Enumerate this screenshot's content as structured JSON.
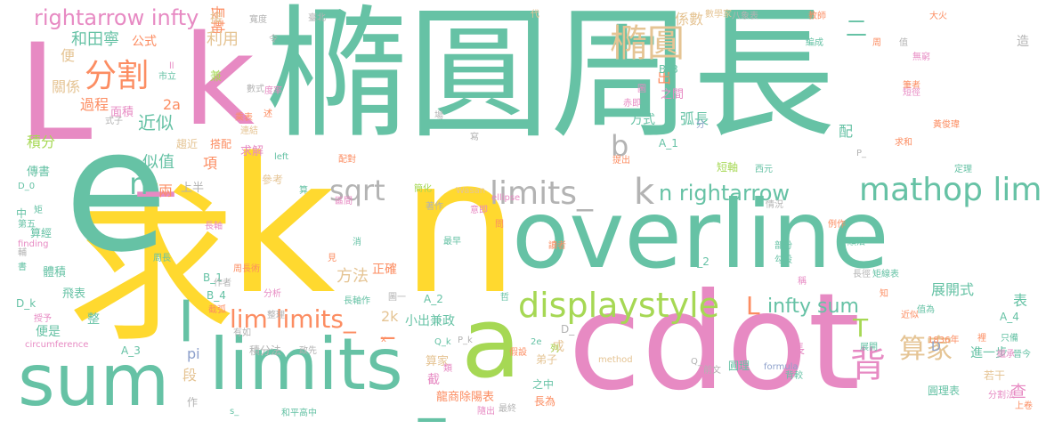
{
  "palette": {
    "green": "#66c2a5",
    "pink": "#e78ac3",
    "yellow": "#ffd92f",
    "orange": "#fc8d62",
    "lime": "#a6d854",
    "blue": "#8da0cb",
    "tan": "#e5c494",
    "gray": "#b3b3b3"
  },
  "words": [
    {
      "text": "橢圓周長",
      "color": "green"
    },
    {
      "text": "求",
      "color": "yellow"
    },
    {
      "text": "k",
      "color": "yellow"
    },
    {
      "text": "n",
      "color": "yellow"
    },
    {
      "text": "e",
      "color": "green"
    },
    {
      "text": "L",
      "color": "pink"
    },
    {
      "text": "k",
      "color": "pink"
    },
    {
      "text": "cdot",
      "color": "pink"
    },
    {
      "text": "overline",
      "color": "green"
    },
    {
      "text": "a",
      "color": "lime"
    },
    {
      "text": "sum",
      "color": "green"
    },
    {
      "text": "limits",
      "color": "green"
    },
    {
      "text": "_",
      "color": "green"
    },
    {
      "text": "_",
      "color": "pink"
    },
    {
      "text": "displaystyle",
      "color": "lime"
    },
    {
      "text": "mathop lim",
      "color": "green"
    },
    {
      "text": "limits_",
      "color": "gray"
    },
    {
      "text": "k",
      "color": "gray"
    },
    {
      "text": "n rightarrow",
      "color": "green"
    },
    {
      "text": "sqrt",
      "color": "gray"
    },
    {
      "text": "lim limits_",
      "color": "orange"
    },
    {
      "text": "infty sum",
      "color": "green"
    },
    {
      "text": "rightarrow infty",
      "color": "pink"
    },
    {
      "text": "分割",
      "color": "orange"
    },
    {
      "text": "橢圓",
      "color": "tan"
    },
    {
      "text": "算家",
      "color": "tan"
    },
    {
      "text": "背",
      "color": "pink"
    },
    {
      "text": "L",
      "color": "orange"
    },
    {
      "text": "T",
      "color": "lime"
    },
    {
      "text": "b",
      "color": "gray"
    },
    {
      "text": "n",
      "color": "green"
    },
    {
      "text": "_",
      "color": "orange"
    },
    {
      "text": "_",
      "color": "green"
    },
    {
      "text": "長軸",
      "color": "orange"
    },
    {
      "text": "利用",
      "color": "tan"
    },
    {
      "text": "和田寧",
      "color": "green"
    },
    {
      "text": "公式",
      "color": "orange"
    },
    {
      "text": "係數",
      "color": "tan"
    },
    {
      "text": "過程",
      "color": "orange"
    },
    {
      "text": "關係",
      "color": "tan"
    },
    {
      "text": "近似",
      "color": "green"
    },
    {
      "text": "面積",
      "color": "pink"
    },
    {
      "text": "積分",
      "color": "lime"
    },
    {
      "text": "似值",
      "color": "green"
    },
    {
      "text": "項",
      "color": "orange"
    },
    {
      "text": "2a",
      "color": "orange"
    },
    {
      "text": "方法",
      "color": "tan"
    },
    {
      "text": "正確",
      "color": "orange"
    },
    {
      "text": "小出兼政",
      "color": "green"
    },
    {
      "text": "展開式",
      "color": "green"
    },
    {
      "text": "表",
      "color": "green"
    },
    {
      "text": "進一步",
      "color": "green"
    },
    {
      "text": "查",
      "color": "pink"
    },
    {
      "text": "弧長",
      "color": "green"
    },
    {
      "text": "配",
      "color": "green"
    },
    {
      "text": "出",
      "color": "orange"
    },
    {
      "text": "二",
      "color": "green"
    },
    {
      "text": "方式",
      "color": "green"
    },
    {
      "text": "之間",
      "color": "pink"
    },
    {
      "text": "B_3",
      "color": "green"
    },
    {
      "text": "B_2",
      "color": "green"
    },
    {
      "text": "B_1",
      "color": "green"
    },
    {
      "text": "B_4",
      "color": "green"
    },
    {
      "text": "A_1",
      "color": "green"
    },
    {
      "text": "A_2",
      "color": "green"
    },
    {
      "text": "A_3",
      "color": "green"
    },
    {
      "text": "A_4",
      "color": "green"
    },
    {
      "text": "2k",
      "color": "tan"
    },
    {
      "text": "pi",
      "color": "blue"
    },
    {
      "text": "段",
      "color": "tan"
    },
    {
      "text": "作",
      "color": "gray"
    },
    {
      "text": "積分法",
      "color": "gray"
    },
    {
      "text": "兩",
      "color": "orange"
    },
    {
      "text": "上半",
      "color": "gray"
    },
    {
      "text": "中",
      "color": "green"
    },
    {
      "text": "算經",
      "color": "green"
    },
    {
      "text": "體積",
      "color": "green"
    },
    {
      "text": "飛表",
      "color": "green"
    },
    {
      "text": "便是",
      "color": "green"
    },
    {
      "text": "整",
      "color": "green"
    },
    {
      "text": "D_k",
      "color": "green"
    },
    {
      "text": "傳書",
      "color": "green"
    },
    {
      "text": "趨近",
      "color": "tan"
    },
    {
      "text": "搭配",
      "color": "orange"
    },
    {
      "text": "求解",
      "color": "pink"
    },
    {
      "text": "參考",
      "color": "tan"
    },
    {
      "text": "短軸",
      "color": "lime"
    },
    {
      "text": "成",
      "color": "tan"
    },
    {
      "text": "弟子",
      "color": "tan"
    },
    {
      "text": "長",
      "color": "pink"
    },
    {
      "text": "算家",
      "color": "tan"
    },
    {
      "text": "截",
      "color": "pink"
    },
    {
      "text": "龍商除陽表",
      "color": "orange"
    },
    {
      "text": "長為",
      "color": "orange"
    },
    {
      "text": "之中",
      "color": "green"
    },
    {
      "text": "圓理",
      "color": "green"
    },
    {
      "text": "圓理表",
      "color": "green"
    },
    {
      "text": "若干",
      "color": "tan"
    },
    {
      "text": "便",
      "color": "tan"
    },
    {
      "text": "兼",
      "color": "lime"
    },
    {
      "text": "造",
      "color": "gray"
    },
    {
      "text": "D",
      "color": "blue"
    },
    {
      "text": "D_",
      "color": "gray"
    },
    {
      "text": "D_0",
      "color": "green"
    },
    {
      "text": "數學家",
      "color": "tan"
    },
    {
      "text": "教師",
      "color": "orange"
    },
    {
      "text": "大火",
      "color": "orange"
    },
    {
      "text": "代",
      "color": "tan"
    },
    {
      "text": "寬度",
      "color": "gray"
    },
    {
      "text": "臺北",
      "color": "gray"
    },
    {
      "text": "數式",
      "color": "gray"
    },
    {
      "text": "令",
      "color": "gray"
    },
    {
      "text": "度率",
      "color": "pink"
    },
    {
      "text": "乘表",
      "color": "orange"
    },
    {
      "text": "連結",
      "color": "tan"
    },
    {
      "text": "式子",
      "color": "gray"
    },
    {
      "text": "left",
      "color": "green"
    },
    {
      "text": "配對",
      "color": "orange"
    },
    {
      "text": "簡化",
      "color": "lime"
    },
    {
      "text": "Wasan",
      "color": "tan"
    },
    {
      "text": "ellipse",
      "color": "pink"
    },
    {
      "text": "finding",
      "color": "pink"
    },
    {
      "text": "method",
      "color": "tan"
    },
    {
      "text": "formula",
      "color": "blue"
    },
    {
      "text": "circumference",
      "color": "pink"
    },
    {
      "text": "1836年",
      "color": "orange"
    },
    {
      "text": "求和",
      "color": "orange"
    },
    {
      "text": "黃俊瑋",
      "color": "orange"
    },
    {
      "text": "西元",
      "color": "green"
    },
    {
      "text": "定理",
      "color": "green"
    },
    {
      "text": "分析",
      "color": "pink"
    },
    {
      "text": "整理",
      "color": "gray"
    },
    {
      "text": "和平高中",
      "color": "green"
    },
    {
      "text": "最終",
      "color": "gray"
    },
    {
      "text": "作者",
      "color": "gray"
    },
    {
      "text": "周長術",
      "color": "orange"
    },
    {
      "text": "周長",
      "color": "green"
    },
    {
      "text": "截弧",
      "color": "orange"
    },
    {
      "text": "長軸作",
      "color": "green"
    },
    {
      "text": "假設",
      "color": "orange"
    },
    {
      "text": "讀者",
      "color": "orange"
    },
    {
      "text": "部份",
      "color": "green"
    },
    {
      "text": "勾股",
      "color": "green"
    },
    {
      "text": "順法",
      "color": "green"
    },
    {
      "text": "矩線表",
      "color": "green"
    },
    {
      "text": "值為",
      "color": "green"
    },
    {
      "text": "知",
      "color": "orange"
    },
    {
      "text": "近似",
      "color": "orange"
    },
    {
      "text": "展開",
      "color": "green"
    },
    {
      "text": "只備",
      "color": "green"
    },
    {
      "text": "繼承",
      "color": "pink"
    },
    {
      "text": "晉今",
      "color": "green"
    },
    {
      "text": "上卷",
      "color": "orange"
    },
    {
      "text": "背較",
      "color": "green"
    },
    {
      "text": "前文",
      "color": "gray"
    },
    {
      "text": "提出",
      "color": "orange"
    },
    {
      "text": "稱",
      "color": "pink"
    },
    {
      "text": "長徑",
      "color": "gray"
    },
    {
      "text": "情況",
      "color": "gray"
    },
    {
      "text": "編成",
      "color": "green"
    },
    {
      "text": "無窮",
      "color": "pink"
    },
    {
      "text": "周",
      "color": "orange"
    },
    {
      "text": "值",
      "color": "gray"
    },
    {
      "text": "筆者",
      "color": "orange"
    },
    {
      "text": "短徑",
      "color": "pink"
    },
    {
      "text": "八象表",
      "color": "gray"
    },
    {
      "text": "赤即",
      "color": "pink"
    },
    {
      "text": "場",
      "color": "gray"
    },
    {
      "text": "寫",
      "color": "gray"
    },
    {
      "text": "分",
      "color": "blue"
    },
    {
      "text": "圖",
      "color": "pink"
    },
    {
      "text": "市立",
      "color": "green"
    },
    {
      "text": "區間",
      "color": "pink"
    },
    {
      "text": "意即",
      "color": "pink"
    },
    {
      "text": "最早",
      "color": "green"
    },
    {
      "text": "矩",
      "color": "green"
    },
    {
      "text": "第五",
      "color": "green"
    },
    {
      "text": "消",
      "color": "green"
    },
    {
      "text": "見",
      "color": "orange"
    },
    {
      "text": "類",
      "color": "pink"
    },
    {
      "text": "著作",
      "color": "gray"
    },
    {
      "text": "輔",
      "color": "gray"
    },
    {
      "text": "書",
      "color": "green"
    },
    {
      "text": "授予",
      "color": "pink"
    },
    {
      "text": "有如",
      "color": "gray"
    },
    {
      "text": "政先",
      "color": "gray"
    },
    {
      "text": "Q_k",
      "color": "green"
    },
    {
      "text": "P_k",
      "color": "gray"
    },
    {
      "text": "P_",
      "color": "gray"
    },
    {
      "text": "Q_",
      "color": "gray"
    },
    {
      "text": "s_",
      "color": "green"
    },
    {
      "text": "x",
      "color": "orange"
    },
    {
      "text": "例作",
      "color": "orange"
    },
    {
      "text": "列",
      "color": "lime"
    },
    {
      "text": "哲",
      "color": "green"
    },
    {
      "text": "問",
      "color": "orange"
    },
    {
      "text": "算",
      "color": "green"
    },
    {
      "text": "圖一",
      "color": "gray"
    },
    {
      "text": "隨出",
      "color": "pink"
    },
    {
      "text": "2e",
      "color": "green"
    },
    {
      "text": "ll",
      "color": "pink"
    },
    {
      "text": "述",
      "color": "orange"
    },
    {
      "text": "裡",
      "color": "orange"
    },
    {
      "text": "分割法",
      "color": "pink"
    },
    {
      "text": "長軸",
      "color": "pink"
    },
    {
      "text": "接",
      "color": "tan"
    }
  ]
}
